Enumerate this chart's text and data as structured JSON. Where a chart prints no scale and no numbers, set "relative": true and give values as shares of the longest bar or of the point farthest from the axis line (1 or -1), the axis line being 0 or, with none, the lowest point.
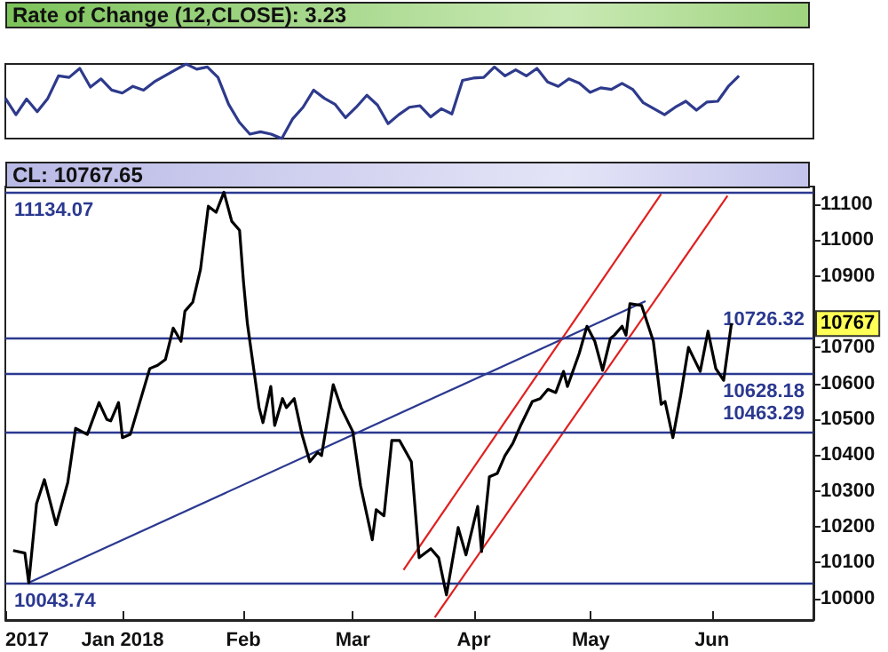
{
  "chart_data": [
    {
      "type": "line",
      "title": "Rate of Change (12,CLOSE): 3.23",
      "relative": true,
      "marker": "none",
      "line_style": "solid",
      "tick_labels": false,
      "categories": [
        null,
        null,
        null,
        null,
        null,
        null,
        null,
        null,
        null,
        null,
        null,
        null,
        null,
        null,
        null,
        null,
        null,
        null,
        null,
        null,
        null,
        null,
        null,
        null,
        null,
        null,
        null,
        null,
        null,
        null,
        null,
        null,
        null,
        null,
        null,
        null,
        null,
        null,
        null,
        null,
        null,
        null,
        null,
        null,
        null,
        null,
        null,
        null,
        null,
        null,
        null,
        null,
        null,
        null,
        null,
        null,
        null,
        null,
        null,
        null,
        null,
        null,
        null,
        null,
        null,
        null,
        null,
        null,
        null,
        null,
        null,
        null,
        null,
        null,
        null,
        null,
        null
      ],
      "series": [
        {
          "color": "#2e3a8c",
          "values": [
            0.54,
            0.32,
            0.53,
            0.36,
            0.54,
            0.84,
            0.82,
            0.94,
            0.69,
            0.8,
            0.65,
            0.61,
            0.7,
            0.65,
            0.76,
            0.84,
            0.92,
            1,
            0.93,
            0.96,
            0.82,
            0.46,
            0.22,
            0.06,
            0.09,
            0.06,
            0,
            0.26,
            0.42,
            0.65,
            0.54,
            0.46,
            0.28,
            0.42,
            0.58,
            0.45,
            0.2,
            0.32,
            0.42,
            0.44,
            0.29,
            0.4,
            0.33,
            0.78,
            0.81,
            0.82,
            0.96,
            0.84,
            0.92,
            0.84,
            0.94,
            0.76,
            0.7,
            0.8,
            0.74,
            0.62,
            0.68,
            0.66,
            0.74,
            0.66,
            0.48,
            0.4,
            0.32,
            0.42,
            0.5,
            0.38,
            0.49,
            0.5,
            0.7,
            0.84,
            null,
            null,
            null,
            null,
            null,
            null,
            null
          ]
        }
      ]
    },
    {
      "type": "line",
      "title": "CL: 10767.65",
      "marker": "none",
      "line_style": "solid",
      "xlim": [
        "2017-12-02",
        "2018-06-27"
      ],
      "xticks": [
        {
          "value": "2017-12-02",
          "label": "2017"
        },
        {
          "value": "2018-01-01",
          "label": "Jan 2018"
        },
        {
          "value": "2018-02-01",
          "label": "Feb"
        },
        {
          "value": "2018-03-01",
          "label": "Mar"
        },
        {
          "value": "2018-04-01",
          "label": "Apr"
        },
        {
          "value": "2018-05-01",
          "label": "May"
        },
        {
          "value": "2018-06-01",
          "label": "Jun"
        }
      ],
      "ylim": [
        9940,
        11150
      ],
      "yticks": [
        10000,
        10100,
        10200,
        10300,
        10400,
        10500,
        10600,
        10700,
        10900,
        11000,
        11100
      ],
      "series": [
        {
          "color": "#000000",
          "x": [
            "2017-12-04",
            "2017-12-07",
            "2017-12-08",
            "2017-12-10",
            "2017-12-12",
            "2017-12-15",
            "2017-12-18",
            "2017-12-20",
            "2017-12-23",
            "2017-12-26",
            "2017-12-28",
            "2017-12-29",
            "2017-12-31",
            "2018-01-01",
            "2018-01-03",
            "2018-01-08",
            "2018-01-10",
            "2018-01-12",
            "2018-01-14",
            "2018-01-16",
            "2018-01-17",
            "2018-01-19",
            "2018-01-21",
            "2018-01-23",
            "2018-01-25",
            "2018-01-27",
            "2018-01-29",
            "2018-01-31",
            "2018-02-01",
            "2018-02-02",
            "2018-02-05",
            "2018-02-06",
            "2018-02-08",
            "2018-02-09",
            "2018-02-11",
            "2018-02-12",
            "2018-02-14",
            "2018-02-16",
            "2018-02-18",
            "2018-02-20",
            "2018-02-21",
            "2018-02-24",
            "2018-02-26",
            "2018-03-01",
            "2018-03-03",
            "2018-03-06",
            "2018-03-07",
            "2018-03-09",
            "2018-03-11",
            "2018-03-13",
            "2018-03-16",
            "2018-03-18",
            "2018-03-21",
            "2018-03-23",
            "2018-03-25",
            "2018-03-28",
            "2018-03-30",
            "2018-04-02",
            "2018-04-03",
            "2018-04-05",
            "2018-04-07",
            "2018-04-09",
            "2018-04-11",
            "2018-04-13",
            "2018-04-16",
            "2018-04-18",
            "2018-04-20",
            "2018-04-22",
            "2018-04-24",
            "2018-04-25",
            "2018-04-28",
            "2018-04-30",
            "2018-05-02",
            "2018-05-04",
            "2018-05-06",
            "2018-05-07",
            "2018-05-09",
            "2018-05-10",
            "2018-05-11",
            "2018-05-14",
            "2018-05-17",
            "2018-05-19",
            "2018-05-20",
            "2018-05-22",
            "2018-05-24",
            "2018-05-26",
            "2018-05-29",
            "2018-05-31",
            "2018-06-02",
            "2018-06-04",
            "2018-06-06"
          ],
          "values": [
            10134,
            10127,
            10044,
            10265,
            10332,
            10206,
            10324,
            10475,
            10458,
            10547,
            10500,
            10496,
            10547,
            10449,
            10458,
            10642,
            10651,
            10667,
            10755,
            10718,
            10802,
            10827,
            10919,
            11095,
            11078,
            11134,
            11053,
            11028,
            10885,
            10768,
            10533,
            10491,
            10592,
            10483,
            10558,
            10533,
            10558,
            10458,
            10382,
            10408,
            10399,
            10597,
            10533,
            10466,
            10315,
            10164,
            10248,
            10231,
            10441,
            10441,
            10382,
            10114,
            10139,
            10114,
            10010,
            10198,
            10122,
            10257,
            10131,
            10340,
            10349,
            10399,
            10433,
            10483,
            10550,
            10558,
            10584,
            10575,
            10634,
            10592,
            10684,
            10760,
            10718,
            10637,
            10726,
            10735,
            10760,
            10735,
            10823,
            10818,
            10718,
            10542,
            10550,
            10449,
            10567,
            10701,
            10634,
            10746,
            10642,
            10609,
            10768
          ]
        },
        {
          "type": "line",
          "color": "#2b3990",
          "x": [
            "2017-12-08",
            "2018-05-15"
          ],
          "values": [
            10044,
            10830
          ]
        },
        {
          "type": "line",
          "color": "#e02020",
          "x": [
            "2018-03-14",
            "2018-05-19"
          ],
          "values": [
            10080,
            11129
          ]
        },
        {
          "type": "line",
          "color": "#e02020",
          "x": [
            "2018-03-22",
            "2018-06-05"
          ],
          "values": [
            9947,
            11124
          ]
        }
      ],
      "ref_lines": [
        {
          "axis": "y",
          "value": 11134.07,
          "label": "11134.07",
          "color": "#2b3990"
        },
        {
          "axis": "y",
          "value": 10726.32,
          "label": "10726.32",
          "color": "#2b3990"
        },
        {
          "axis": "y",
          "value": 10628.18,
          "label": "10628.18",
          "color": "#2b3990"
        },
        {
          "axis": "y",
          "value": 10463.29,
          "label": "10463.29",
          "color": "#2b3990"
        },
        {
          "axis": "y",
          "value": 10043.74,
          "label": "10043.74",
          "color": "#2b3990"
        }
      ],
      "annotations": [
        {
          "text": "10767",
          "y": 10767.65
        }
      ]
    }
  ]
}
